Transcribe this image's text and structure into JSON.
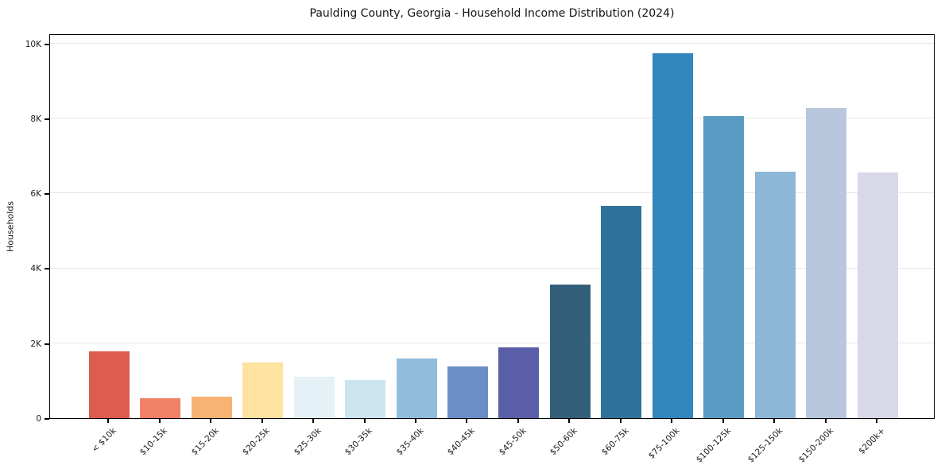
{
  "chart_data": {
    "type": "bar",
    "title": "Paulding County, Georgia - Household Income Distribution (2024)",
    "xlabel": "",
    "ylabel": "Households",
    "categories": [
      "< $10k",
      "$10-15k",
      "$15-20k",
      "$20-25k",
      "$25-30k",
      "$30-35k",
      "$35-40k",
      "$40-45k",
      "$45-50k",
      "$50-60k",
      "$60-75k",
      "$75-100k",
      "$100-125k",
      "$125-150k",
      "$150-200k",
      "$200k+"
    ],
    "values": [
      1790,
      540,
      570,
      1480,
      1100,
      1010,
      1600,
      1370,
      1880,
      3560,
      5660,
      9750,
      8070,
      6580,
      8270,
      6560
    ],
    "bar_colors": [
      "#dd5b4f",
      "#f28066",
      "#f8b273",
      "#fde2a0",
      "#e4f1f7",
      "#cbe5f0",
      "#91bddd",
      "#6a8fc5",
      "#5a5ea8",
      "#32607a",
      "#30739a",
      "#3288bc",
      "#599bc2",
      "#8cb7d7",
      "#b8c7dd",
      "#d8d9e8"
    ],
    "y_ticks": [
      "0",
      "2K",
      "4K",
      "6K",
      "8K",
      "10K"
    ],
    "y_tick_values": [
      0,
      2000,
      4000,
      6000,
      8000,
      10000
    ],
    "ylim": [
      0,
      10270
    ],
    "grid": "horizontal",
    "legend": "none",
    "background": "#ffffff",
    "spine_color": "#000000",
    "grid_color": "#e7e7e7",
    "text_color": "#1c1c1c"
  }
}
